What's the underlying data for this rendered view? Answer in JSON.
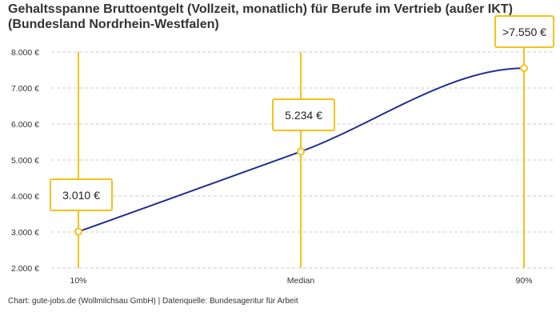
{
  "chart_data": {
    "type": "line",
    "title": "Gehaltsspanne Bruttoentgelt (Vollzeit, monatlich) für Berufe im Vertrieb (außer IKT) (Bundesland Nordrhein-Westfalen)",
    "categories": [
      "10%",
      "Median",
      "90%"
    ],
    "values": [
      3010,
      5234,
      7550
    ],
    "data_labels": [
      "3.010 €",
      "5.234 €",
      ">7.550 €"
    ],
    "y_ticks": [
      {
        "value": 2000,
        "label": "2.000 €"
      },
      {
        "value": 3000,
        "label": "3.000 €"
      },
      {
        "value": 4000,
        "label": "4.000 €"
      },
      {
        "value": 5000,
        "label": "5.000 €"
      },
      {
        "value": 6000,
        "label": "6.000 €"
      },
      {
        "value": 7000,
        "label": "7.000 €"
      },
      {
        "value": 8000,
        "label": "8.000 €"
      }
    ],
    "ylim": [
      2000,
      8000
    ],
    "grid": true,
    "line_color": "#1f2f8f",
    "marker_color": "#f5c218"
  },
  "source": "Chart: gute-jobs.de (Wollmilchsau GmbH) | Datenquelle: Bundesagentur für Arbeit"
}
